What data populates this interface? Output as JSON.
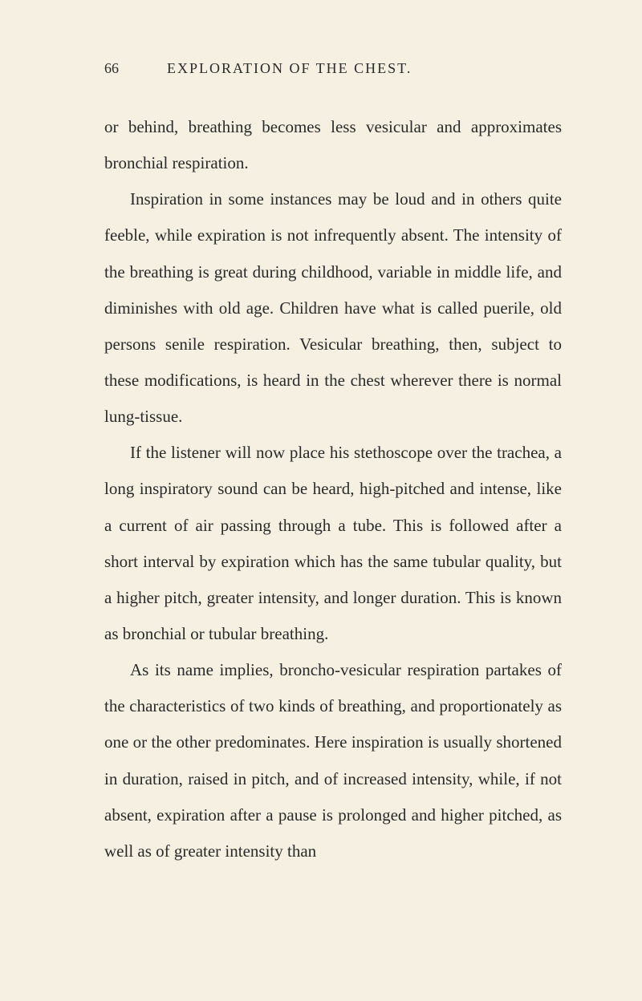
{
  "page": {
    "number": "66",
    "title": "EXPLORATION OF THE CHEST.",
    "paragraphs": {
      "p1": "or behind, breathing becomes less vesicular and approximates bronchial respiration.",
      "p2": "Inspiration in some instances may be loud and in others quite feeble, while expiration is not infrequently absent. The intensity of the breathing is great during childhood, variable in middle life, and diminishes with old age. Children have what is called puerile, old persons senile respiration. Vesicular breathing, then, subject to these modifications, is heard in the chest wherever there is normal lung-tissue.",
      "p3": "If the listener will now place his stethoscope over the trachea, a long inspiratory sound can be heard, high-pitched and intense, like a current of air passing through a tube. This is followed after a short interval by expiration which has the same tubular quality, but a higher pitch, greater intensity, and longer duration. This is known as bronchial or tubular breathing.",
      "p4": "As its name implies, broncho-vesicular respiration partakes of the characteristics of two kinds of breathing, and proportionately as one or the other predominates. Here inspiration is usually shortened in duration, raised in pitch, and of increased intensity, while, if not absent, expiration after a pause is prolonged and higher pitched, as well as of greater intensity than"
    }
  },
  "colors": {
    "background": "#f5f0e1",
    "text": "#2a2a2a"
  },
  "typography": {
    "body_fontsize": 21,
    "header_fontsize": 18,
    "line_height": 2.15,
    "font_family": "Georgia, Times New Roman, serif"
  }
}
